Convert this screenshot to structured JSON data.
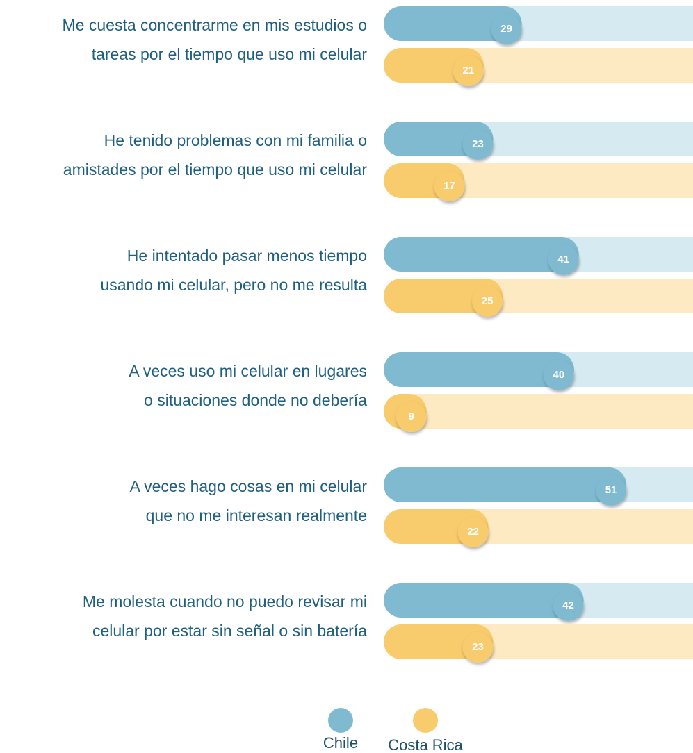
{
  "chart_data": {
    "type": "bar",
    "categories": [
      [
        "Me cuesta concentrarme en mis estudios o",
        "tareas por el tiempo que uso mi celular"
      ],
      [
        "He tenido problemas con mi familia o",
        "amistades por el tiempo que uso mi celular"
      ],
      [
        "He intentado pasar menos tiempo",
        "usando mi celular, pero no me resulta"
      ],
      [
        "A veces uso mi celular en lugares",
        "o situaciones donde no debería"
      ],
      [
        "A veces hago cosas en mi celular",
        "que no me interesan realmente"
      ],
      [
        "Me molesta cuando no puedo revisar mi",
        "celular por estar sin señal o sin batería"
      ]
    ],
    "series": [
      {
        "name": "Chile",
        "color": "#7fbad0",
        "track": "#d6eaf1",
        "values": [
          29,
          23,
          41,
          40,
          51,
          42
        ]
      },
      {
        "name": "Costa Rica",
        "color": "#f8cb6c",
        "track": "#fde9c2",
        "values": [
          21,
          17,
          25,
          9,
          22,
          23
        ]
      }
    ],
    "xlim": [
      0,
      65
    ]
  }
}
